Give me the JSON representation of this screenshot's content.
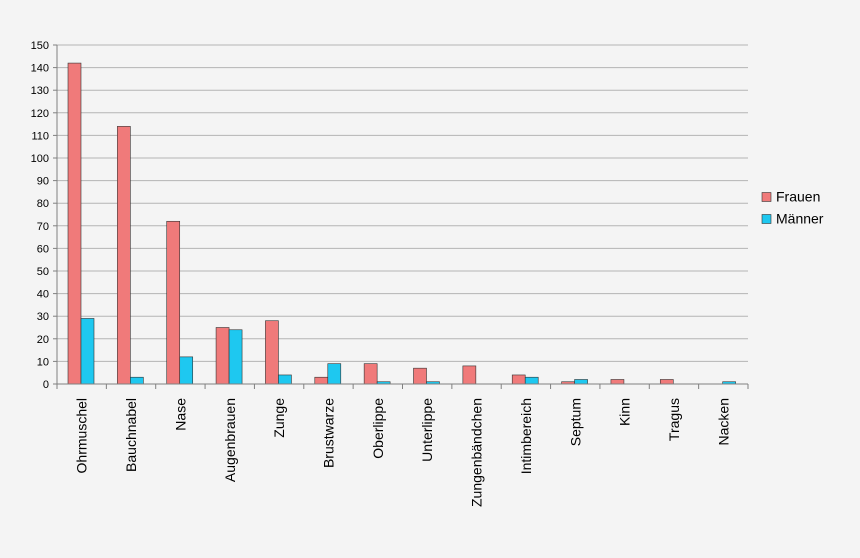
{
  "chart_data": {
    "type": "bar",
    "categories": [
      "Ohrmuschel",
      "Bauchnabel",
      "Nase",
      "Augenbrauen",
      "Zunge",
      "Brustwarze",
      "Oberlippe",
      "Unterlippe",
      "Zungenbändchen",
      "Intimbereich",
      "Septum",
      "Kinn",
      "Tragus",
      "Nacken"
    ],
    "series": [
      {
        "name": "Frauen",
        "color": "#f07a7a",
        "values": [
          142,
          114,
          72,
          25,
          28,
          3,
          9,
          7,
          8,
          4,
          1,
          2,
          2,
          0
        ]
      },
      {
        "name": "Männer",
        "color": "#1ec8f0",
        "values": [
          29,
          3,
          12,
          24,
          4,
          9,
          1,
          1,
          0,
          3,
          2,
          0,
          0,
          1
        ]
      }
    ],
    "ylim": [
      0,
      150
    ],
    "yticks": [
      0,
      10,
      20,
      30,
      40,
      50,
      60,
      70,
      80,
      90,
      100,
      110,
      120,
      130,
      140,
      150
    ],
    "grid": true,
    "legend": "right"
  }
}
